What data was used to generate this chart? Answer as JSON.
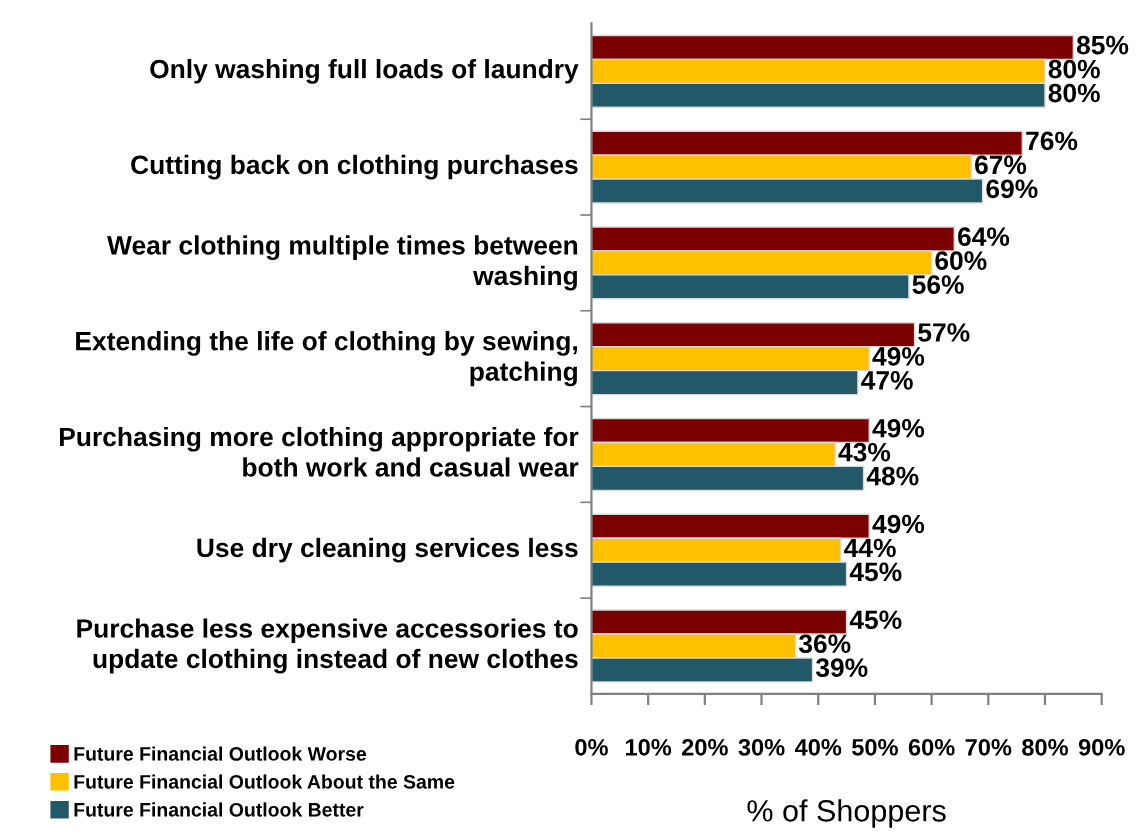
{
  "chart_data": {
    "type": "bar",
    "orientation": "horizontal",
    "xlabel": "% of Shoppers",
    "categories": [
      "Only washing full loads of laundry",
      "Cutting back on clothing purchases",
      "Wear clothing multiple times between washing",
      "Extending the life of clothing by sewing, patching",
      "Purchasing more clothing appropriate for both work and casual wear",
      "Use dry cleaning services less",
      "Purchase less expensive accessories to update clothing instead of new clothes"
    ],
    "series": [
      {
        "name": "Future Financial Outlook Worse",
        "color": "#7b0000",
        "values": [
          85,
          76,
          64,
          57,
          49,
          49,
          45
        ],
        "value_labels": [
          "85%",
          "76%",
          "64%",
          "57%",
          "49%",
          "49%",
          "45%"
        ]
      },
      {
        "name": "Future Financial Outlook About the Same",
        "color": "#ffc000",
        "values": [
          80,
          67,
          60,
          49,
          43,
          44,
          36
        ],
        "value_labels": [
          "80%",
          "67%",
          "60%",
          "49%",
          "43%",
          "44%",
          "36%"
        ]
      },
      {
        "name": "Future Financial Outlook Better",
        "color": "#215968",
        "values": [
          80,
          69,
          56,
          47,
          48,
          45,
          39
        ],
        "value_labels": [
          "80%",
          "69%",
          "56%",
          "47%",
          "48%",
          "45%",
          "39%"
        ]
      }
    ],
    "xlim": [
      0,
      90
    ],
    "xticks": [
      {
        "value": 0,
        "label": "0%"
      },
      {
        "value": 10,
        "label": "10%"
      },
      {
        "value": 20,
        "label": "20%"
      },
      {
        "value": 30,
        "label": "30%"
      },
      {
        "value": 40,
        "label": "40%"
      },
      {
        "value": 50,
        "label": "50%"
      },
      {
        "value": 60,
        "label": "60%"
      },
      {
        "value": 70,
        "label": "70%"
      },
      {
        "value": 80,
        "label": "80%"
      },
      {
        "value": 90,
        "label": "90%"
      }
    ],
    "grid": false,
    "legend": "bottom left"
  }
}
